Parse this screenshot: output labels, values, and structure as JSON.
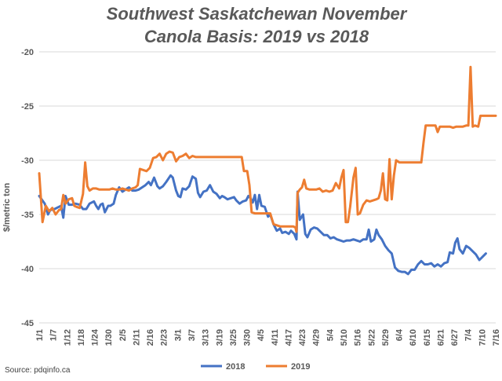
{
  "chart_data": {
    "type": "line",
    "title_line1": "Southwest Saskatchewan November",
    "title_line2": "Canola Basis: 2019 vs 2018",
    "ylabel": "$/metric ton",
    "xlabel": "",
    "ylim": [
      -45,
      -20
    ],
    "yticks": [
      -20,
      -25,
      -30,
      -35,
      -40,
      -45
    ],
    "x_tick_labels": [
      "1/1",
      "1/7",
      "1/12",
      "1/18",
      "1/24",
      "1/30",
      "2/5",
      "2/11",
      "2/16",
      "2/23",
      "3/1",
      "3/7",
      "3/13",
      "3/19",
      "3/25",
      "3/30",
      "4/5",
      "4/11",
      "4/17",
      "4/23",
      "4/29",
      "5/4",
      "5/10",
      "5/16",
      "5/22",
      "5/29",
      "6/4",
      "6/10",
      "6/15",
      "6/21",
      "6/27",
      "7/4",
      "7/10",
      "7/16"
    ],
    "source": "Source: pdqinfo.ca",
    "grid": "horizontal",
    "legend_position": "bottom",
    "series": [
      {
        "name": "2018",
        "color": "#4472C4",
        "values": [
          [
            0,
            -33.3
          ],
          [
            0.5,
            -34.0
          ],
          [
            0.8,
            -35.0
          ],
          [
            1,
            -34.6
          ],
          [
            1.4,
            -34.5
          ],
          [
            1.8,
            -34.3
          ],
          [
            2,
            -34.2
          ],
          [
            2.2,
            -35.3
          ],
          [
            2.4,
            -33.3
          ],
          [
            2.7,
            -34.1
          ],
          [
            3,
            -34.1
          ],
          [
            3.3,
            -34.0
          ],
          [
            3.7,
            -34.1
          ],
          [
            4,
            -34.5
          ],
          [
            4.3,
            -34.5
          ],
          [
            4.6,
            -34.0
          ],
          [
            5,
            -33.8
          ],
          [
            5.2,
            -34.2
          ],
          [
            5.4,
            -34.5
          ],
          [
            5.6,
            -34.1
          ],
          [
            5.8,
            -34.0
          ],
          [
            6,
            -34.8
          ],
          [
            6.3,
            -34.2
          ],
          [
            6.5,
            -34.2
          ],
          [
            6.8,
            -34.0
          ],
          [
            7,
            -33.2
          ],
          [
            7.3,
            -32.5
          ],
          [
            7.6,
            -32.9
          ],
          [
            7.9,
            -32.7
          ],
          [
            8.2,
            -32.5
          ],
          [
            8.5,
            -32.8
          ],
          [
            8.8,
            -32.8
          ],
          [
            9.1,
            -32.7
          ],
          [
            9.4,
            -32.5
          ],
          [
            9.7,
            -32.3
          ],
          [
            10,
            -32.0
          ],
          [
            10.2,
            -32.3
          ],
          [
            10.5,
            -31.6
          ],
          [
            10.8,
            -32.4
          ],
          [
            11,
            -32.6
          ],
          [
            11.3,
            -32.4
          ],
          [
            11.6,
            -32.0
          ],
          [
            12,
            -31.4
          ],
          [
            12.2,
            -31.6
          ],
          [
            12.5,
            -32.8
          ],
          [
            12.7,
            -33.3
          ],
          [
            12.9,
            -33.4
          ],
          [
            13.1,
            -32.6
          ],
          [
            13.4,
            -32.7
          ],
          [
            13.7,
            -32.4
          ],
          [
            14,
            -31.5
          ],
          [
            14.3,
            -31.7
          ],
          [
            14.5,
            -33.0
          ],
          [
            14.7,
            -33.4
          ],
          [
            15,
            -32.9
          ],
          [
            15.3,
            -32.8
          ],
          [
            15.6,
            -32.3
          ],
          [
            15.9,
            -32.9
          ],
          [
            16.2,
            -33.1
          ],
          [
            16.5,
            -33.5
          ],
          [
            16.7,
            -33.3
          ],
          [
            16.9,
            -33.4
          ],
          [
            17.2,
            -33.6
          ],
          [
            17.5,
            -33.5
          ],
          [
            17.8,
            -33.4
          ],
          [
            18,
            -33.7
          ],
          [
            18.3,
            -34.0
          ],
          [
            18.6,
            -33.8
          ],
          [
            18.9,
            -33.7
          ],
          [
            19.1,
            -33.3
          ],
          [
            19.3,
            -33.5
          ],
          [
            19.5,
            -33.9
          ],
          [
            19.7,
            -33.2
          ],
          [
            19.9,
            -34.5
          ],
          [
            20.1,
            -33.2
          ],
          [
            20.3,
            -34.2
          ],
          [
            20.6,
            -34.3
          ],
          [
            20.9,
            -35.2
          ],
          [
            21.1,
            -35.0
          ],
          [
            21.4,
            -35.9
          ],
          [
            21.7,
            -36.5
          ],
          [
            22,
            -36.3
          ],
          [
            22.2,
            -36.7
          ],
          [
            22.5,
            -36.6
          ],
          [
            22.8,
            -36.8
          ],
          [
            23,
            -36.5
          ],
          [
            23.3,
            -36.8
          ],
          [
            23.5,
            -37.3
          ],
          [
            23.6,
            -32.9
          ],
          [
            23.8,
            -35.5
          ],
          [
            24.1,
            -35.0
          ],
          [
            24.3,
            -36.8
          ],
          [
            24.5,
            -37.1
          ],
          [
            24.8,
            -36.4
          ],
          [
            25.1,
            -36.2
          ],
          [
            25.4,
            -36.3
          ],
          [
            25.7,
            -36.6
          ],
          [
            26,
            -36.9
          ],
          [
            26.3,
            -36.9
          ],
          [
            26.6,
            -37.2
          ],
          [
            26.9,
            -37.1
          ],
          [
            27.2,
            -37.3
          ],
          [
            27.5,
            -37.4
          ],
          [
            27.8,
            -37.5
          ],
          [
            28.1,
            -37.4
          ],
          [
            28.4,
            -37.4
          ],
          [
            28.7,
            -37.3
          ],
          [
            29,
            -37.4
          ],
          [
            29.3,
            -37.5
          ],
          [
            29.6,
            -37.3
          ],
          [
            29.9,
            -37.3
          ],
          [
            30.1,
            -36.4
          ],
          [
            30.3,
            -37.5
          ],
          [
            30.6,
            -37.3
          ],
          [
            30.8,
            -36.4
          ],
          [
            31,
            -36.9
          ],
          [
            31.3,
            -37.3
          ],
          [
            31.6,
            -37.9
          ],
          [
            31.9,
            -38.3
          ],
          [
            32.2,
            -38.6
          ],
          [
            32.5,
            -39.9
          ],
          [
            32.8,
            -40.2
          ],
          [
            33.1,
            -40.3
          ],
          [
            33.4,
            -40.3
          ],
          [
            33.7,
            -40.5
          ],
          [
            34,
            -40.1
          ],
          [
            34.3,
            -40.1
          ],
          [
            34.6,
            -39.6
          ],
          [
            34.9,
            -39.3
          ],
          [
            35.2,
            -39.6
          ],
          [
            35.5,
            -39.6
          ],
          [
            35.8,
            -39.5
          ],
          [
            36.1,
            -39.8
          ],
          [
            36.4,
            -39.6
          ],
          [
            36.7,
            -39.8
          ],
          [
            37,
            -39.5
          ],
          [
            37.3,
            -39.4
          ],
          [
            37.5,
            -38.5
          ],
          [
            37.8,
            -38.6
          ],
          [
            38,
            -37.6
          ],
          [
            38.2,
            -37.2
          ],
          [
            38.4,
            -38.2
          ],
          [
            38.7,
            -38.6
          ],
          [
            39,
            -37.9
          ],
          [
            39.3,
            -38.1
          ],
          [
            39.6,
            -38.4
          ],
          [
            39.9,
            -38.7
          ],
          [
            40.2,
            -39.2
          ],
          [
            40.5,
            -38.9
          ],
          [
            40.8,
            -38.6
          ]
        ]
      },
      {
        "name": "2019",
        "color": "#ED7D31",
        "values": [
          [
            0,
            -31.2
          ],
          [
            0.3,
            -35.7
          ],
          [
            0.6,
            -34.2
          ],
          [
            0.9,
            -34.7
          ],
          [
            1.2,
            -34.4
          ],
          [
            1.5,
            -35.0
          ],
          [
            1.8,
            -34.6
          ],
          [
            2,
            -34.5
          ],
          [
            2.2,
            -33.2
          ],
          [
            2.4,
            -34.0
          ],
          [
            2.7,
            -33.6
          ],
          [
            3,
            -33.5
          ],
          [
            3.2,
            -34.2
          ],
          [
            3.4,
            -34.3
          ],
          [
            3.7,
            -34.4
          ],
          [
            4,
            -33.1
          ],
          [
            4.2,
            -30.2
          ],
          [
            4.4,
            -32.4
          ],
          [
            4.6,
            -32.8
          ],
          [
            4.9,
            -32.6
          ],
          [
            5.2,
            -32.6
          ],
          [
            5.5,
            -32.7
          ],
          [
            5.8,
            -32.7
          ],
          [
            6.1,
            -32.7
          ],
          [
            6.4,
            -32.7
          ],
          [
            6.7,
            -32.6
          ],
          [
            7,
            -32.7
          ],
          [
            7.3,
            -32.7
          ],
          [
            7.6,
            -32.6
          ],
          [
            7.9,
            -32.7
          ],
          [
            8.2,
            -32.8
          ],
          [
            8.5,
            -32.6
          ],
          [
            8.8,
            -32.5
          ],
          [
            9,
            -32.3
          ],
          [
            9.2,
            -30.8
          ],
          [
            9.5,
            -30.9
          ],
          [
            9.8,
            -31.0
          ],
          [
            10.1,
            -30.7
          ],
          [
            10.4,
            -29.8
          ],
          [
            10.7,
            -29.7
          ],
          [
            11,
            -29.4
          ],
          [
            11.3,
            -30.0
          ],
          [
            11.6,
            -29.4
          ],
          [
            11.9,
            -29.2
          ],
          [
            12.2,
            -29.3
          ],
          [
            12.5,
            -30.1
          ],
          [
            12.8,
            -29.7
          ],
          [
            13.1,
            -29.6
          ],
          [
            13.4,
            -29.4
          ],
          [
            13.7,
            -29.8
          ],
          [
            14,
            -29.6
          ],
          [
            14.3,
            -29.7
          ],
          [
            14.6,
            -29.7
          ],
          [
            14.9,
            -29.7
          ],
          [
            15.2,
            -29.7
          ],
          [
            15.5,
            -29.7
          ],
          [
            15.8,
            -29.7
          ],
          [
            16.1,
            -29.7
          ],
          [
            16.4,
            -29.7
          ],
          [
            16.7,
            -29.7
          ],
          [
            17,
            -29.7
          ],
          [
            17.3,
            -29.7
          ],
          [
            17.6,
            -29.7
          ],
          [
            17.9,
            -29.7
          ],
          [
            18.2,
            -29.7
          ],
          [
            18.5,
            -29.7
          ],
          [
            18.7,
            -31.0
          ],
          [
            19,
            -31.0
          ],
          [
            19.2,
            -32.3
          ],
          [
            19.4,
            -34.8
          ],
          [
            19.7,
            -34.9
          ],
          [
            20,
            -34.9
          ],
          [
            20.3,
            -34.9
          ],
          [
            20.6,
            -34.9
          ],
          [
            20.9,
            -34.9
          ],
          [
            21.1,
            -34.9
          ],
          [
            21.4,
            -35.9
          ],
          [
            21.7,
            -36.0
          ],
          [
            22,
            -36.1
          ],
          [
            22.3,
            -36.1
          ],
          [
            22.6,
            -36.1
          ],
          [
            22.9,
            -36.1
          ],
          [
            23.2,
            -36.1
          ],
          [
            23.4,
            -36.2
          ],
          [
            23.5,
            -36.6
          ],
          [
            23.6,
            -33.0
          ],
          [
            23.8,
            -32.7
          ],
          [
            24,
            -32.5
          ],
          [
            24.2,
            -31.8
          ],
          [
            24.4,
            -32.6
          ],
          [
            24.7,
            -32.7
          ],
          [
            25,
            -32.7
          ],
          [
            25.3,
            -32.7
          ],
          [
            25.6,
            -32.6
          ],
          [
            25.9,
            -32.9
          ],
          [
            26.2,
            -32.8
          ],
          [
            26.5,
            -32.9
          ],
          [
            26.8,
            -32.8
          ],
          [
            27.1,
            -32.1
          ],
          [
            27.4,
            -32.6
          ],
          [
            27.6,
            -31.6
          ],
          [
            27.8,
            -30.9
          ],
          [
            28,
            -35.7
          ],
          [
            28.2,
            -35.7
          ],
          [
            28.4,
            -34.3
          ],
          [
            28.7,
            -31.6
          ],
          [
            28.9,
            -30.7
          ],
          [
            29.1,
            -35.0
          ],
          [
            29.3,
            -34.9
          ],
          [
            29.6,
            -34.1
          ],
          [
            29.9,
            -33.7
          ],
          [
            30.2,
            -33.8
          ],
          [
            30.5,
            -33.7
          ],
          [
            30.8,
            -33.6
          ],
          [
            31,
            -33.5
          ],
          [
            31.2,
            -32.8
          ],
          [
            31.4,
            -31.2
          ],
          [
            31.6,
            -33.6
          ],
          [
            31.8,
            -33.7
          ],
          [
            32,
            -29.9
          ],
          [
            32.2,
            -33.6
          ],
          [
            32.4,
            -31.4
          ],
          [
            32.6,
            -30.0
          ],
          [
            32.9,
            -30.2
          ],
          [
            33.2,
            -30.2
          ],
          [
            33.5,
            -30.2
          ],
          [
            33.8,
            -30.2
          ],
          [
            34.1,
            -30.2
          ],
          [
            34.4,
            -30.2
          ],
          [
            34.7,
            -30.2
          ],
          [
            34.9,
            -30.2
          ],
          [
            35.1,
            -28.4
          ],
          [
            35.3,
            -26.8
          ],
          [
            35.6,
            -26.8
          ],
          [
            35.9,
            -26.8
          ],
          [
            36.2,
            -26.8
          ],
          [
            36.4,
            -27.4
          ],
          [
            36.6,
            -26.9
          ],
          [
            36.9,
            -26.9
          ],
          [
            37.2,
            -26.9
          ],
          [
            37.5,
            -26.9
          ],
          [
            37.8,
            -27.0
          ],
          [
            38.1,
            -26.9
          ],
          [
            38.4,
            -26.9
          ],
          [
            38.7,
            -26.9
          ],
          [
            39,
            -26.8
          ],
          [
            39.2,
            -26.8
          ],
          [
            39.4,
            -21.4
          ],
          [
            39.6,
            -26.9
          ],
          [
            39.8,
            -26.8
          ],
          [
            40.1,
            -26.9
          ],
          [
            40.3,
            -25.9
          ],
          [
            40.6,
            -25.9
          ],
          [
            40.9,
            -25.9
          ],
          [
            41.2,
            -25.9
          ],
          [
            41.5,
            -25.9
          ],
          [
            41.7,
            -25.9
          ]
        ]
      }
    ]
  }
}
